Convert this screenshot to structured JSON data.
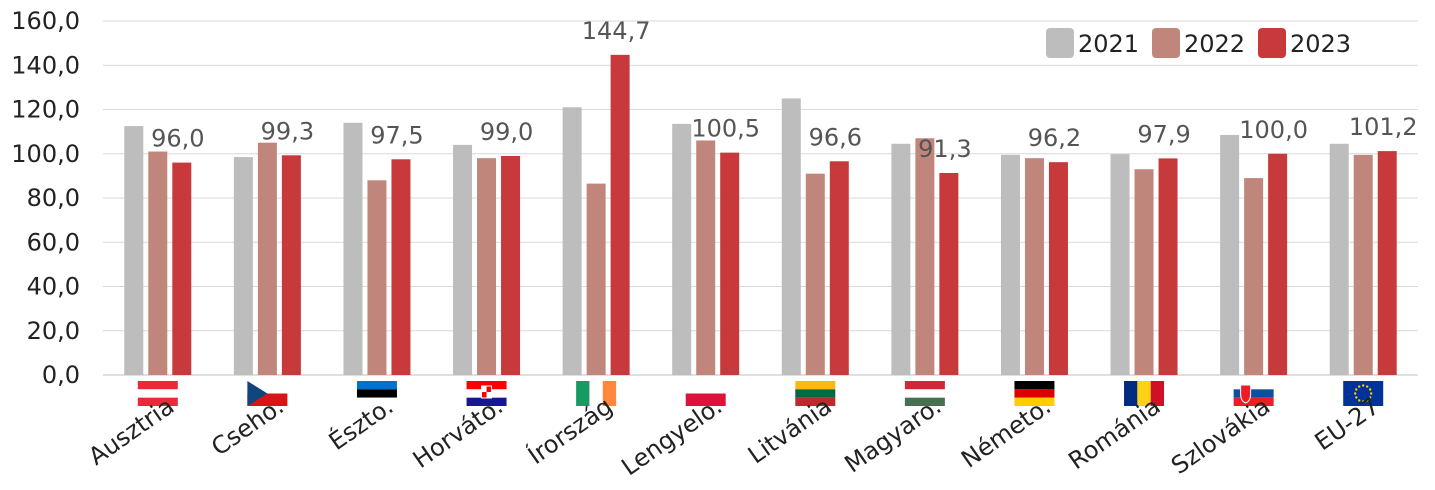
{
  "chart_data": {
    "type": "bar",
    "categories": [
      "Ausztria",
      "Cseho.",
      "Észto.",
      "Horváto.",
      "Írország",
      "Lengyelo.",
      "Litvánia",
      "Magyaro.",
      "Németo.",
      "Románia",
      "Szlovákia",
      "EU-27"
    ],
    "series": [
      {
        "name": "2021",
        "color": "#bdbdbd",
        "values": [
          112.5,
          98.5,
          114.0,
          104.0,
          121.0,
          113.5,
          125.0,
          104.5,
          99.5,
          99.8,
          108.5,
          104.5
        ]
      },
      {
        "name": "2022",
        "color": "#c0867c",
        "values": [
          101.0,
          105.0,
          88.0,
          98.0,
          86.5,
          106.0,
          91.0,
          107.0,
          98.0,
          93.0,
          89.0,
          99.5
        ]
      },
      {
        "name": "2023",
        "color": "#c8393b",
        "values": [
          96.0,
          99.3,
          97.5,
          99.0,
          144.7,
          100.5,
          96.6,
          91.3,
          96.2,
          97.9,
          100.0,
          101.2
        ]
      }
    ],
    "data_labels": [
      "96,0",
      "99,3",
      "97,5",
      "99,0",
      "144,7",
      "100,5",
      "96,6",
      "91,3",
      "96,2",
      "97,9",
      "100,0",
      "101,2"
    ],
    "y_ticks": [
      "0,0",
      "20,0",
      "40,0",
      "60,0",
      "80,0",
      "100,0",
      "120,0",
      "140,0",
      "160,0"
    ],
    "ylim": [
      0,
      160
    ],
    "grid": true,
    "legend_position": "top-right",
    "flags": [
      "austria-flag",
      "czechia-flag",
      "estonia-flag",
      "croatia-flag",
      "ireland-flag",
      "poland-flag",
      "lithuania-flag",
      "hungary-flag",
      "germany-flag",
      "romania-flag",
      "slovakia-flag",
      "eu-flag"
    ]
  }
}
